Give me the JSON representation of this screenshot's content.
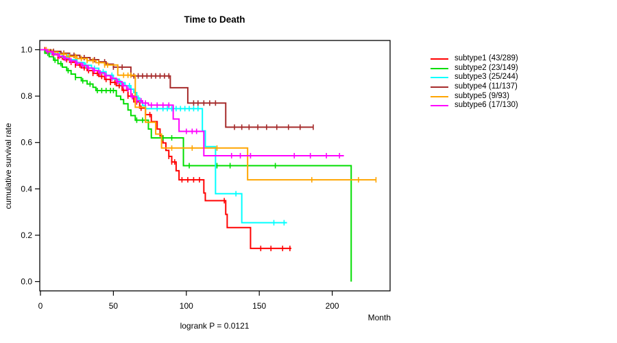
{
  "title": "Time to Death",
  "chart_data": {
    "type": "line",
    "subtype": "kaplan-meier-step",
    "title": "Time to Death",
    "xlabel": "Month",
    "ylabel": "cumulative survival rate",
    "stat_annotation": "logrank P = 0.0121",
    "x_ticks": [
      0,
      50,
      100,
      150,
      200
    ],
    "y_ticks": [
      0.0,
      0.2,
      0.4,
      0.6,
      0.8,
      1.0
    ],
    "xlim": [
      0,
      240
    ],
    "ylim": [
      0,
      1
    ],
    "grid": false,
    "legend_position": "right",
    "series": [
      {
        "name": "subtype1 (43/289)",
        "color": "#ff0000",
        "end_time": 172,
        "steps": [
          [
            0,
            1.0
          ],
          [
            4,
            0.99
          ],
          [
            8,
            0.979
          ],
          [
            12,
            0.968
          ],
          [
            16,
            0.957
          ],
          [
            20,
            0.946
          ],
          [
            24,
            0.934
          ],
          [
            28,
            0.922
          ],
          [
            32,
            0.91
          ],
          [
            36,
            0.898
          ],
          [
            40,
            0.885
          ],
          [
            44,
            0.872
          ],
          [
            48,
            0.859
          ],
          [
            52,
            0.845
          ],
          [
            56,
            0.825
          ],
          [
            60,
            0.8
          ],
          [
            64,
            0.775
          ],
          [
            68,
            0.748
          ],
          [
            72,
            0.72
          ],
          [
            76,
            0.69
          ],
          [
            80,
            0.658
          ],
          [
            82,
            0.628
          ],
          [
            84,
            0.598
          ],
          [
            86,
            0.566
          ],
          [
            88,
            0.54
          ],
          [
            90,
            0.516
          ],
          [
            93,
            0.478
          ],
          [
            95,
            0.439
          ],
          [
            112,
            0.382
          ],
          [
            113,
            0.349
          ],
          [
            127,
            0.29
          ],
          [
            128,
            0.233
          ],
          [
            144,
            0.143
          ]
        ],
        "censor_ticks": [
          3,
          6,
          9,
          12,
          15,
          18,
          21,
          24,
          27,
          30,
          33,
          36,
          39,
          42,
          45,
          48,
          51,
          54,
          57,
          60,
          63,
          66,
          69,
          72,
          75,
          88,
          90,
          92,
          97,
          101,
          105,
          109,
          126,
          151,
          158,
          166,
          171
        ]
      },
      {
        "name": "subtype2 (23/149)",
        "color": "#00dd00",
        "end_time": 213,
        "steps": [
          [
            0,
            1.0
          ],
          [
            3,
            0.985
          ],
          [
            6,
            0.97
          ],
          [
            9,
            0.955
          ],
          [
            12,
            0.94
          ],
          [
            15,
            0.925
          ],
          [
            18,
            0.91
          ],
          [
            21,
            0.895
          ],
          [
            24,
            0.88
          ],
          [
            28,
            0.866
          ],
          [
            32,
            0.852
          ],
          [
            36,
            0.838
          ],
          [
            38,
            0.824
          ],
          [
            52,
            0.8
          ],
          [
            55,
            0.785
          ],
          [
            57,
            0.767
          ],
          [
            60,
            0.74
          ],
          [
            62,
            0.716
          ],
          [
            65,
            0.696
          ],
          [
            74,
            0.658
          ],
          [
            76,
            0.62
          ],
          [
            98,
            0.5
          ],
          [
            213,
            0.0
          ]
        ],
        "censor_ticks": [
          5,
          10,
          14,
          19,
          24,
          29,
          34,
          39,
          42,
          45,
          48,
          50,
          66,
          70,
          84,
          90,
          102,
          121,
          130,
          161
        ]
      },
      {
        "name": "subtype3 (25/244)",
        "color": "#00ffff",
        "end_time": 169,
        "steps": [
          [
            0,
            1.0
          ],
          [
            5,
            0.991
          ],
          [
            10,
            0.981
          ],
          [
            15,
            0.969
          ],
          [
            20,
            0.957
          ],
          [
            25,
            0.945
          ],
          [
            30,
            0.933
          ],
          [
            35,
            0.92
          ],
          [
            40,
            0.905
          ],
          [
            45,
            0.89
          ],
          [
            50,
            0.873
          ],
          [
            54,
            0.858
          ],
          [
            58,
            0.845
          ],
          [
            62,
            0.83
          ],
          [
            64,
            0.815
          ],
          [
            66,
            0.792
          ],
          [
            68,
            0.776
          ],
          [
            70,
            0.76
          ],
          [
            72,
            0.746
          ],
          [
            111,
            0.65
          ],
          [
            113,
            0.582
          ],
          [
            120,
            0.379
          ],
          [
            138,
            0.254
          ]
        ],
        "censor_ticks": [
          7,
          13,
          19,
          25,
          31,
          37,
          43,
          49,
          55,
          61,
          67,
          80,
          84,
          87,
          90,
          93,
          96,
          99,
          102,
          105,
          108,
          134,
          160,
          167
        ]
      },
      {
        "name": "subtype4 (11/137)",
        "color": "#a52a2a",
        "end_time": 187,
        "steps": [
          [
            0,
            1.0
          ],
          [
            7,
            0.993
          ],
          [
            14,
            0.985
          ],
          [
            20,
            0.976
          ],
          [
            27,
            0.966
          ],
          [
            34,
            0.957
          ],
          [
            40,
            0.948
          ],
          [
            45,
            0.938
          ],
          [
            50,
            0.925
          ],
          [
            62,
            0.887
          ],
          [
            89,
            0.836
          ],
          [
            101,
            0.77
          ],
          [
            127,
            0.666
          ]
        ],
        "censor_ticks": [
          9,
          16,
          23,
          30,
          37,
          44,
          50,
          53,
          56,
          64,
          67,
          70,
          73,
          76,
          79,
          82,
          85,
          88,
          105,
          108,
          112,
          116,
          120,
          133,
          138,
          143,
          149,
          155,
          162,
          170,
          178,
          187
        ]
      },
      {
        "name": "subtype5 (9/93)",
        "color": "#ffa500",
        "end_time": 230,
        "steps": [
          [
            0,
            1.0
          ],
          [
            6,
            0.99
          ],
          [
            12,
            0.981
          ],
          [
            18,
            0.971
          ],
          [
            25,
            0.962
          ],
          [
            32,
            0.953
          ],
          [
            38,
            0.944
          ],
          [
            44,
            0.934
          ],
          [
            53,
            0.89
          ],
          [
            65,
            0.752
          ],
          [
            72,
            0.687
          ],
          [
            79,
            0.636
          ],
          [
            83,
            0.576
          ],
          [
            142,
            0.439
          ]
        ],
        "censor_ticks": [
          4,
          8,
          12,
          16,
          20,
          24,
          28,
          32,
          36,
          40,
          44,
          46,
          57,
          60,
          62,
          90,
          104,
          121,
          186,
          218,
          230
        ]
      },
      {
        "name": "subtype6 (17/130)",
        "color": "#ff00ff",
        "end_time": 208,
        "steps": [
          [
            0,
            1.0
          ],
          [
            4,
            0.992
          ],
          [
            8,
            0.982
          ],
          [
            12,
            0.972
          ],
          [
            16,
            0.962
          ],
          [
            20,
            0.952
          ],
          [
            24,
            0.942
          ],
          [
            28,
            0.932
          ],
          [
            32,
            0.921
          ],
          [
            36,
            0.91
          ],
          [
            40,
            0.9
          ],
          [
            44,
            0.888
          ],
          [
            48,
            0.877
          ],
          [
            52,
            0.862
          ],
          [
            56,
            0.845
          ],
          [
            59,
            0.83
          ],
          [
            62,
            0.797
          ],
          [
            66,
            0.78
          ],
          [
            70,
            0.77
          ],
          [
            74,
            0.761
          ],
          [
            91,
            0.701
          ],
          [
            95,
            0.648
          ],
          [
            112,
            0.543
          ]
        ],
        "censor_ticks": [
          5,
          9,
          13,
          17,
          21,
          25,
          29,
          33,
          37,
          41,
          45,
          49,
          53,
          57,
          60,
          63,
          66,
          69,
          72,
          76,
          80,
          84,
          88,
          100,
          104,
          107,
          131,
          137,
          144,
          174,
          185,
          196,
          205
        ]
      }
    ]
  }
}
